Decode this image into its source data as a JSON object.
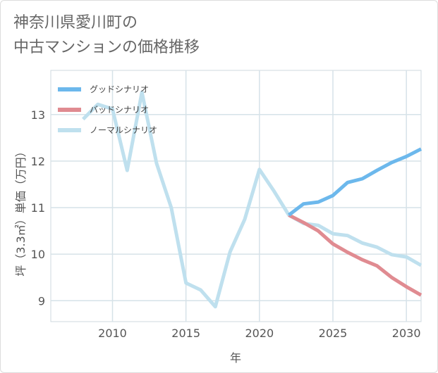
{
  "title": "神奈川県愛川町の\n中古マンションの価格推移",
  "chart_data": {
    "type": "line",
    "xlabel": "年",
    "ylabel": "坪（3.3㎡）単価（万円）",
    "xlim": [
      2005.8,
      2031
    ],
    "ylim": [
      8.55,
      13.95
    ],
    "xticks": [
      2010,
      2015,
      2020,
      2025,
      2030
    ],
    "yticks": [
      9,
      10,
      11,
      12,
      13
    ],
    "grid": true,
    "legend_position": "top-left",
    "series": [
      {
        "name": "グッドシナリオ",
        "color": "#6cb8ec",
        "x": [
          2022,
          2023,
          2024,
          2025,
          2026,
          2027,
          2028,
          2029,
          2030,
          2031
        ],
        "y": [
          10.84,
          11.08,
          11.12,
          11.26,
          11.54,
          11.62,
          11.8,
          11.97,
          12.1,
          12.26
        ]
      },
      {
        "name": "バッドシナリオ",
        "color": "#e08b91",
        "x": [
          2022,
          2023,
          2024,
          2025,
          2026,
          2027,
          2028,
          2029,
          2030,
          2031
        ],
        "y": [
          10.84,
          10.68,
          10.5,
          10.22,
          10.04,
          9.88,
          9.75,
          9.5,
          9.3,
          9.12
        ]
      },
      {
        "name": "ノーマルシナリオ",
        "color": "#bfe0ee",
        "x": [
          2008,
          2009,
          2010,
          2011,
          2012,
          2013,
          2014,
          2015,
          2016,
          2017,
          2018,
          2019,
          2020,
          2021,
          2022,
          2023,
          2024,
          2025,
          2026,
          2027,
          2028,
          2029,
          2030,
          2031
        ],
        "y": [
          12.9,
          13.22,
          13.12,
          11.8,
          13.48,
          11.95,
          11.0,
          9.38,
          9.23,
          8.87,
          10.05,
          10.75,
          11.82,
          11.35,
          10.84,
          10.66,
          10.62,
          10.44,
          10.4,
          10.24,
          10.15,
          9.99,
          9.94,
          9.76
        ]
      }
    ]
  }
}
